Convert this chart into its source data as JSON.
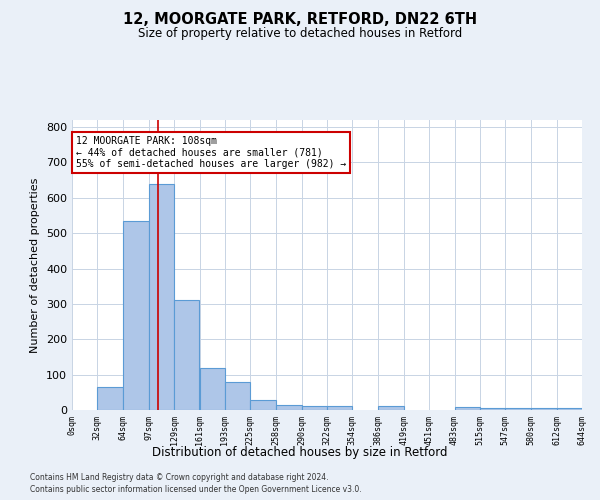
{
  "title1": "12, MOORGATE PARK, RETFORD, DN22 6TH",
  "title2": "Size of property relative to detached houses in Retford",
  "xlabel": "Distribution of detached houses by size in Retford",
  "ylabel": "Number of detached properties",
  "property_size": 108,
  "annotation_line1": "12 MOORGATE PARK: 108sqm",
  "annotation_line2": "← 44% of detached houses are smaller (781)",
  "annotation_line3": "55% of semi-detached houses are larger (982) →",
  "bin_edges": [
    0,
    32,
    64,
    97,
    129,
    161,
    193,
    225,
    258,
    290,
    322,
    354,
    386,
    419,
    451,
    483,
    515,
    547,
    580,
    612,
    644
  ],
  "bar_heights": [
    0,
    65,
    535,
    638,
    312,
    120,
    78,
    28,
    14,
    10,
    10,
    0,
    10,
    0,
    0,
    8,
    5,
    5,
    5,
    5
  ],
  "bar_color": "#aec6e8",
  "bar_edge_color": "#5b9bd5",
  "vline_color": "#cc0000",
  "annotation_box_color": "#cc0000",
  "bg_color": "#eaf0f8",
  "plot_bg_color": "#ffffff",
  "grid_color": "#c8d4e4",
  "ylim": [
    0,
    820
  ],
  "yticks": [
    0,
    100,
    200,
    300,
    400,
    500,
    600,
    700,
    800
  ],
  "footnote1": "Contains HM Land Registry data © Crown copyright and database right 2024.",
  "footnote2": "Contains public sector information licensed under the Open Government Licence v3.0."
}
